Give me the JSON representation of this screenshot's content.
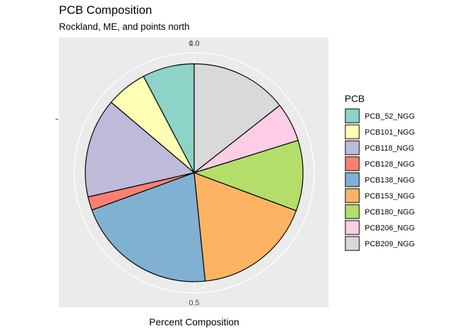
{
  "chart_data": {
    "type": "pie",
    "title": "PCB Composition",
    "subtitle": "Rockland, ME, and points north",
    "xlabel": "Percent Composition",
    "ylabel": "",
    "legend_title": "PCB",
    "legend_position": "right",
    "categories": [
      "PCB_52_NGG",
      "PCB101_NGG",
      "PCB118_NGG",
      "PCB128_NGG",
      "PCB138_NGG",
      "PCB153_NGG",
      "PCB180_NGG",
      "PCB206_NGG",
      "PCB209_NGG"
    ],
    "values": [
      0.081,
      0.064,
      0.155,
      0.021,
      0.221,
      0.186,
      0.11,
      0.061,
      0.151
    ],
    "colors": [
      "#8DD3C7",
      "#FFFFB3",
      "#BEBADA",
      "#FB8072",
      "#80B1D3",
      "#FDB462",
      "#B3DE69",
      "#FCCDE5",
      "#D9D9D9"
    ],
    "radial_ticks": [
      {
        "value": 0.0,
        "label": "0.0"
      },
      {
        "value": 0.5,
        "label": "0.5"
      },
      {
        "value": 1.0,
        "label": "1.0"
      }
    ],
    "direction": "counterclockwise",
    "background": "#EBEBEB",
    "grid_color": "#FFFFFF"
  }
}
